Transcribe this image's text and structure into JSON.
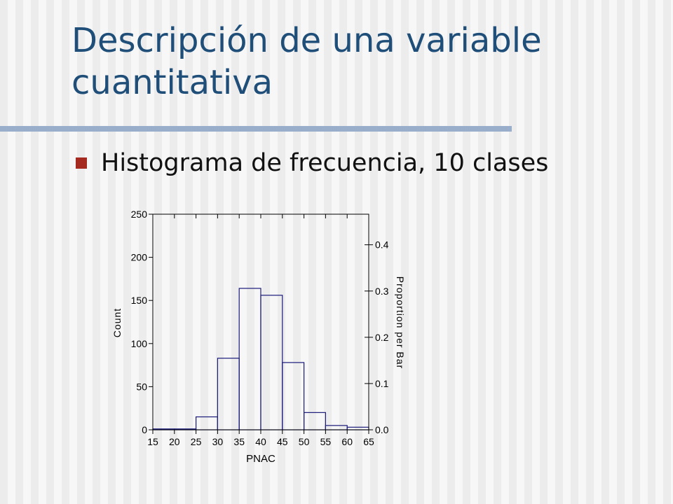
{
  "slide": {
    "title": "Descripción de una variable cuantitativa",
    "bullet": "Histograma de frecuencia, 10 clases"
  },
  "colors": {
    "title": "#1f4e79",
    "rule": "#98aecb",
    "bullet_marker": "#a52a1f",
    "bar_stroke": "#1a1a7a"
  },
  "chart_data": {
    "type": "bar",
    "subtype": "histogram",
    "xlabel": "PNAC",
    "ylabel": "Count",
    "ylabel_right": "Proportion per Bar",
    "bin_edges": [
      15,
      20,
      25,
      30,
      35,
      40,
      45,
      50,
      55,
      60,
      65
    ],
    "values": [
      1,
      1,
      15,
      83,
      164,
      156,
      78,
      20,
      5,
      3
    ],
    "xlim": [
      15,
      65
    ],
    "ylim": [
      0,
      250
    ],
    "x_ticks": [
      15,
      20,
      25,
      30,
      35,
      40,
      45,
      50,
      55,
      60,
      65
    ],
    "y_ticks": [
      0,
      50,
      100,
      150,
      200,
      250
    ],
    "right_ticks": [
      0.0,
      0.1,
      0.2,
      0.3,
      0.4
    ],
    "right_tick_labels": [
      "0.0",
      "0.1",
      "0.2",
      "0.3",
      "0.4"
    ],
    "right_max": 0.4661,
    "grid": false
  }
}
